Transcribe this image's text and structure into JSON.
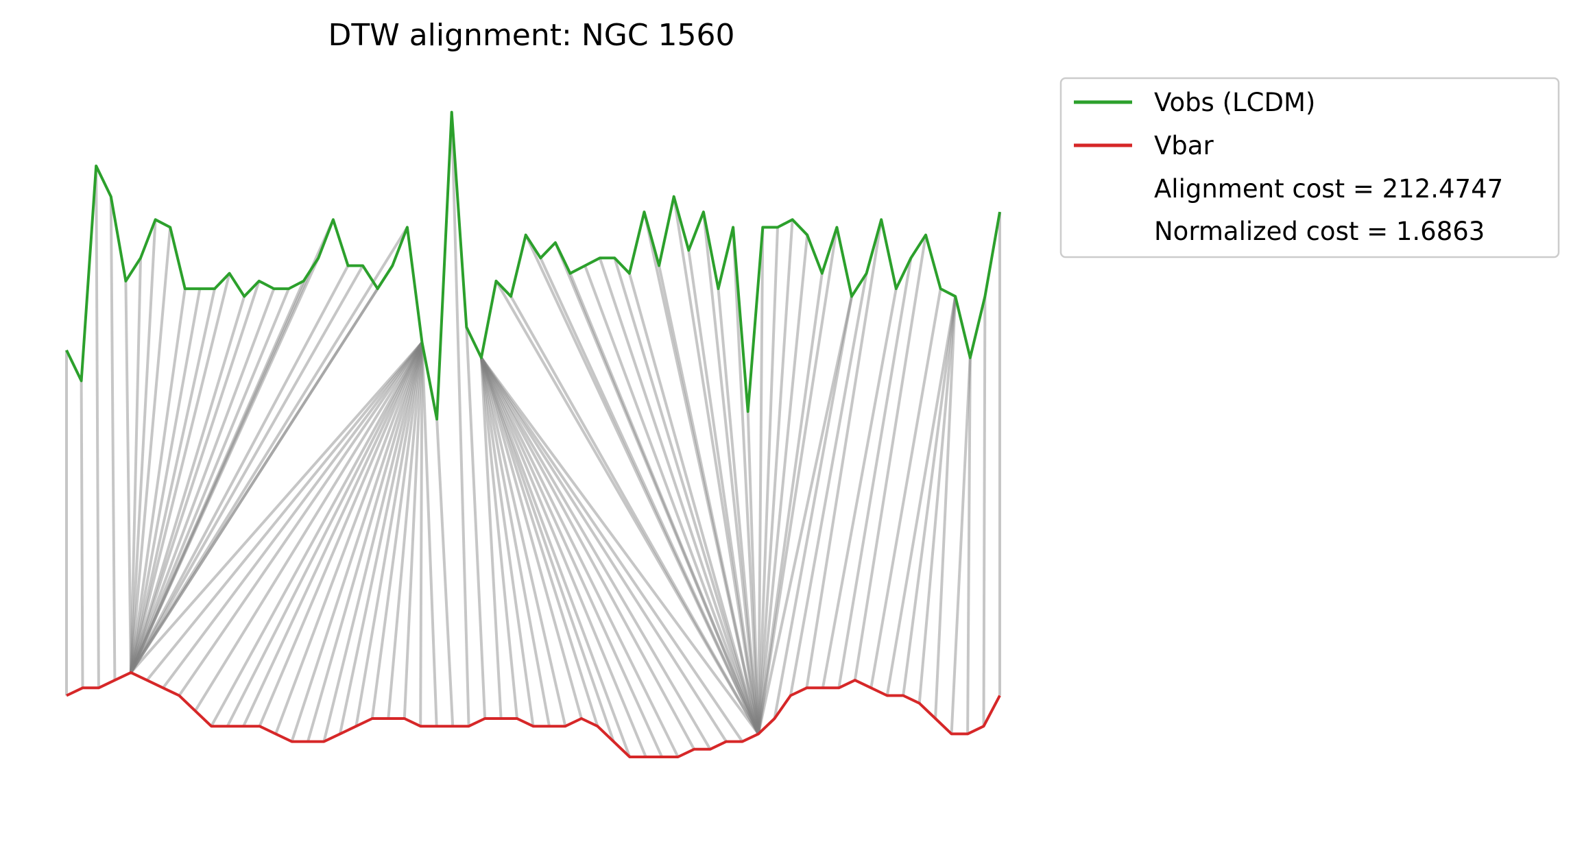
{
  "chart_data": {
    "type": "line",
    "title": "DTW alignment: NGC 1560",
    "xlabel": "",
    "ylabel": "",
    "axes_visible": false,
    "grid": false,
    "legend_placement": "outside upper right",
    "series": [
      {
        "name": "Vobs (LCDM)",
        "color": "#2ca02c",
        "values": [
          0.88,
          0.84,
          1.12,
          1.08,
          0.97,
          1.0,
          1.05,
          1.04,
          0.96,
          0.96,
          0.96,
          0.98,
          0.95,
          0.97,
          0.96,
          0.96,
          0.97,
          1.0,
          1.05,
          0.99,
          0.99,
          0.96,
          0.99,
          1.04,
          0.89,
          0.79,
          1.19,
          0.91,
          0.87,
          0.97,
          0.95,
          1.03,
          1.0,
          1.02,
          0.98,
          0.99,
          1.0,
          1.0,
          0.98,
          1.06,
          0.99,
          1.08,
          1.01,
          1.06,
          0.96,
          1.04,
          0.8,
          1.04,
          1.04,
          1.05,
          1.03,
          0.98,
          1.04,
          0.95,
          0.98,
          1.05,
          0.96,
          1.0,
          1.03,
          0.96,
          0.95,
          0.87,
          0.95,
          1.06
        ]
      },
      {
        "name": "Vbar",
        "color": "#d62728",
        "values": [
          0.43,
          0.44,
          0.44,
          0.45,
          0.46,
          0.45,
          0.44,
          0.43,
          0.41,
          0.39,
          0.39,
          0.39,
          0.39,
          0.38,
          0.37,
          0.37,
          0.37,
          0.38,
          0.39,
          0.4,
          0.4,
          0.4,
          0.39,
          0.39,
          0.39,
          0.39,
          0.4,
          0.4,
          0.4,
          0.39,
          0.39,
          0.39,
          0.4,
          0.39,
          0.37,
          0.35,
          0.35,
          0.35,
          0.35,
          0.36,
          0.36,
          0.37,
          0.37,
          0.38,
          0.4,
          0.43,
          0.44,
          0.44,
          0.44,
          0.45,
          0.44,
          0.43,
          0.43,
          0.42,
          0.4,
          0.38,
          0.38,
          0.39,
          0.43
        ]
      }
    ],
    "alignment_path": [
      [
        0,
        0
      ],
      [
        1,
        1
      ],
      [
        2,
        2
      ],
      [
        3,
        3
      ],
      [
        4,
        4
      ],
      [
        5,
        4
      ],
      [
        6,
        4
      ],
      [
        7,
        4
      ],
      [
        8,
        4
      ],
      [
        9,
        4
      ],
      [
        10,
        4
      ],
      [
        11,
        4
      ],
      [
        12,
        4
      ],
      [
        13,
        4
      ],
      [
        14,
        4
      ],
      [
        15,
        4
      ],
      [
        16,
        4
      ],
      [
        17,
        4
      ],
      [
        18,
        4
      ],
      [
        19,
        4
      ],
      [
        20,
        4
      ],
      [
        21,
        4
      ],
      [
        22,
        4
      ],
      [
        23,
        4
      ],
      [
        24,
        4
      ],
      [
        24,
        5
      ],
      [
        24,
        6
      ],
      [
        24,
        7
      ],
      [
        24,
        8
      ],
      [
        24,
        9
      ],
      [
        24,
        10
      ],
      [
        24,
        11
      ],
      [
        24,
        12
      ],
      [
        24,
        13
      ],
      [
        24,
        14
      ],
      [
        24,
        15
      ],
      [
        24,
        16
      ],
      [
        24,
        17
      ],
      [
        24,
        18
      ],
      [
        24,
        19
      ],
      [
        24,
        20
      ],
      [
        24,
        21
      ],
      [
        24,
        22
      ],
      [
        24,
        23
      ],
      [
        25,
        24
      ],
      [
        26,
        25
      ],
      [
        27,
        26
      ],
      [
        28,
        27
      ],
      [
        28,
        28
      ],
      [
        28,
        29
      ],
      [
        28,
        30
      ],
      [
        28,
        31
      ],
      [
        28,
        32
      ],
      [
        28,
        33
      ],
      [
        28,
        34
      ],
      [
        28,
        35
      ],
      [
        28,
        36
      ],
      [
        28,
        37
      ],
      [
        28,
        38
      ],
      [
        28,
        39
      ],
      [
        28,
        40
      ],
      [
        28,
        41
      ],
      [
        28,
        42
      ],
      [
        28,
        43
      ],
      [
        29,
        43
      ],
      [
        30,
        43
      ],
      [
        31,
        43
      ],
      [
        32,
        43
      ],
      [
        33,
        43
      ],
      [
        34,
        43
      ],
      [
        35,
        43
      ],
      [
        36,
        43
      ],
      [
        37,
        43
      ],
      [
        38,
        43
      ],
      [
        39,
        43
      ],
      [
        40,
        43
      ],
      [
        41,
        43
      ],
      [
        42,
        43
      ],
      [
        43,
        43
      ],
      [
        44,
        43
      ],
      [
        45,
        43
      ],
      [
        46,
        43
      ],
      [
        47,
        43
      ],
      [
        48,
        43
      ],
      [
        49,
        43
      ],
      [
        50,
        43
      ],
      [
        51,
        43
      ],
      [
        52,
        43
      ],
      [
        53,
        43
      ],
      [
        53,
        44
      ],
      [
        54,
        45
      ],
      [
        55,
        46
      ],
      [
        56,
        47
      ],
      [
        57,
        48
      ],
      [
        58,
        49
      ],
      [
        59,
        50
      ],
      [
        60,
        51
      ],
      [
        60,
        52
      ],
      [
        60,
        53
      ],
      [
        60,
        54
      ],
      [
        61,
        55
      ],
      [
        61,
        56
      ],
      [
        62,
        57
      ],
      [
        63,
        58
      ]
    ],
    "legend": {
      "entries": [
        {
          "label": "Vobs (LCDM)",
          "color": "#2ca02c",
          "marker": "line"
        },
        {
          "label": "Vbar",
          "color": "#d62728",
          "marker": "line"
        },
        {
          "label": "Alignment cost = 212.4747",
          "color": "",
          "marker": "none"
        },
        {
          "label": "Normalized cost = 1.6863",
          "color": "",
          "marker": "none"
        }
      ]
    },
    "colors": {
      "alignment_lines": "#bdbdbd",
      "legend_border": "#cccccc"
    }
  }
}
